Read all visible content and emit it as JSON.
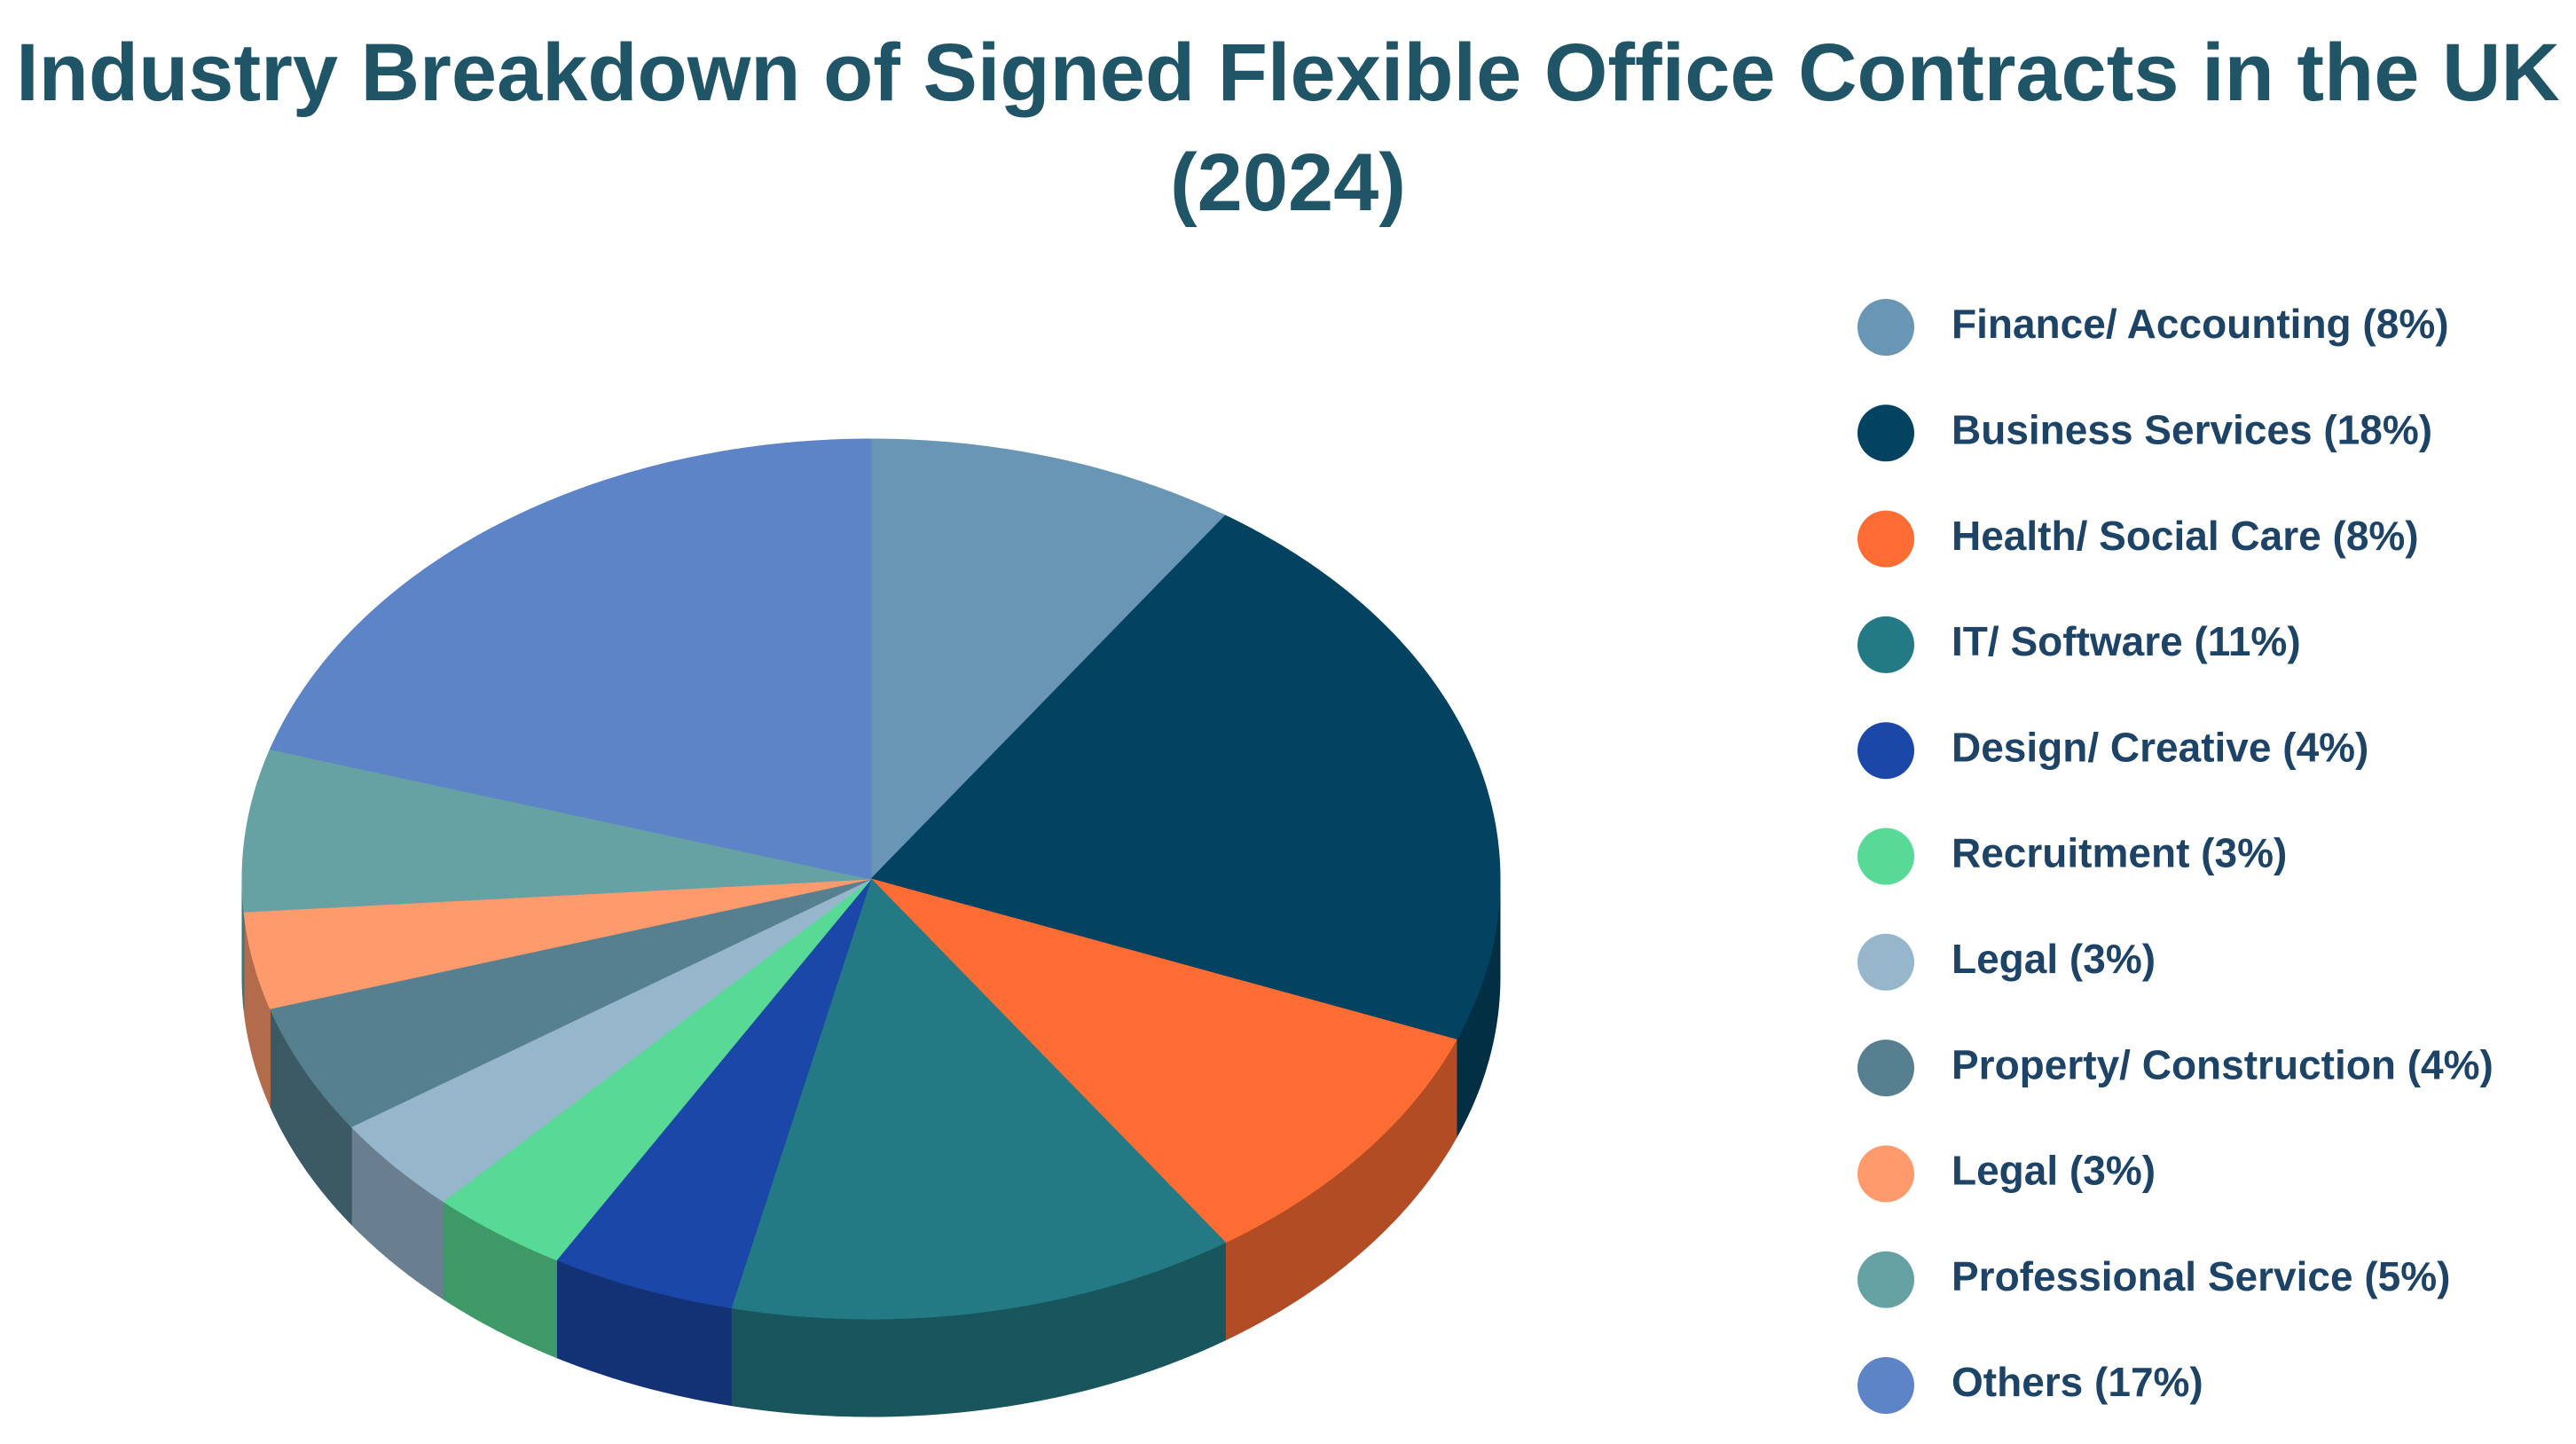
{
  "chart_data": {
    "type": "pie3d",
    "title": "Industry Breakdown of Signed Flexible Office Contracts in the UK (2024)",
    "categories": [
      "Finance/ Accounting (8%)",
      "Business Services (18%)",
      "Health/ Social Care (8%)",
      "IT/ Software (11%)",
      "Design/ Creative (4%)",
      "Recruitment (3%)",
      "Legal (3%)",
      "Property/ Construction (4%)",
      "Legal (3%)",
      "Professional Service (5%)",
      "Others (17%)"
    ],
    "values": [
      8,
      18,
      8,
      11,
      4,
      3,
      3,
      4,
      3,
      5,
      17
    ],
    "colors": [
      "#6a96b5",
      "#034361",
      "#fd6d33",
      "#237a84",
      "#1b47a8",
      "#58d995",
      "#96b6cc",
      "#56808f",
      "#fe9a6c",
      "#66a1a4",
      "#5d84c7"
    ],
    "legend": "right"
  }
}
